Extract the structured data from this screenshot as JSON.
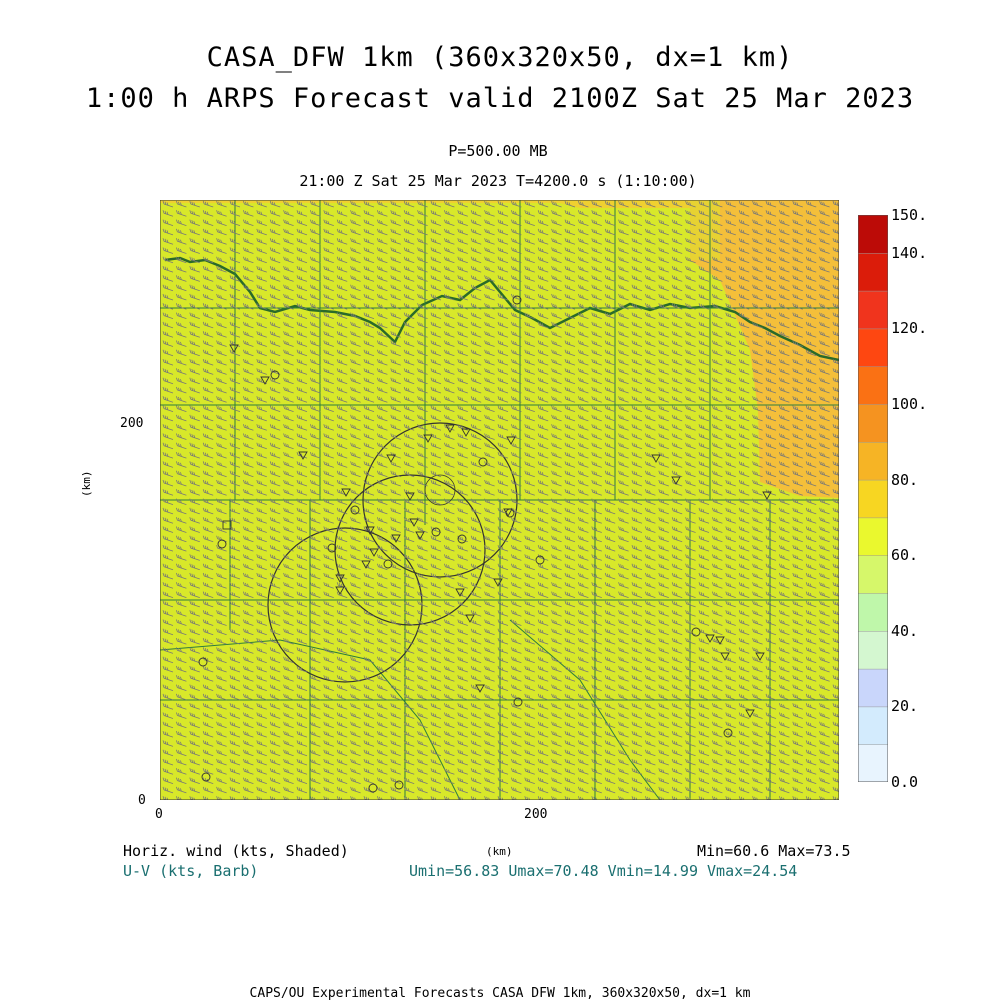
{
  "title": {
    "line1": "CASA_DFW 1km (360x320x50, dx=1 km)",
    "line2": "1:00 h ARPS Forecast valid 2100Z Sat 25 Mar 2023"
  },
  "level": "P=500.00 MB",
  "time_line": "21:00 Z Sat 25 Mar 2023    T=4200.0 s (1:10:00)",
  "axes": {
    "unit_label": "(km)",
    "x_ticks": [
      "0",
      "200"
    ],
    "y_ticks": [
      "0",
      "200"
    ],
    "x_range_km": [
      0,
      360
    ],
    "y_range_km": [
      0,
      320
    ]
  },
  "colorbar": {
    "labels": [
      "0.0",
      "20.",
      "40.",
      "60.",
      "80.",
      "100.",
      "120.",
      "140.",
      "150."
    ],
    "colors": [
      "#e8f4fe",
      "#d3ebfd",
      "#c9d6fb",
      "#d4f7d0",
      "#bff7aa",
      "#d6f76a",
      "#eaf82e",
      "#f7d622",
      "#f6b425",
      "#f59320",
      "#fa7114",
      "#fe4711",
      "#f0341d",
      "#db1c0a",
      "#bc0b07"
    ]
  },
  "field": {
    "base_color": "#d8e82a",
    "high_color": "#f4bf3a",
    "top_strip_color": "#f0d030"
  },
  "stats": {
    "left1": "Horiz. wind (kts, Shaded)",
    "left2": "U-V (kts, Barb)",
    "right1": "Min=60.6 Max=73.5",
    "right2": "Umin=56.83 Umax=70.48 Vmin=14.99 Vmax=24.54"
  },
  "credit": "CAPS/OU Experimental Forecasts  CASA DFW 1km, 360x320x50, dx=1 km"
}
